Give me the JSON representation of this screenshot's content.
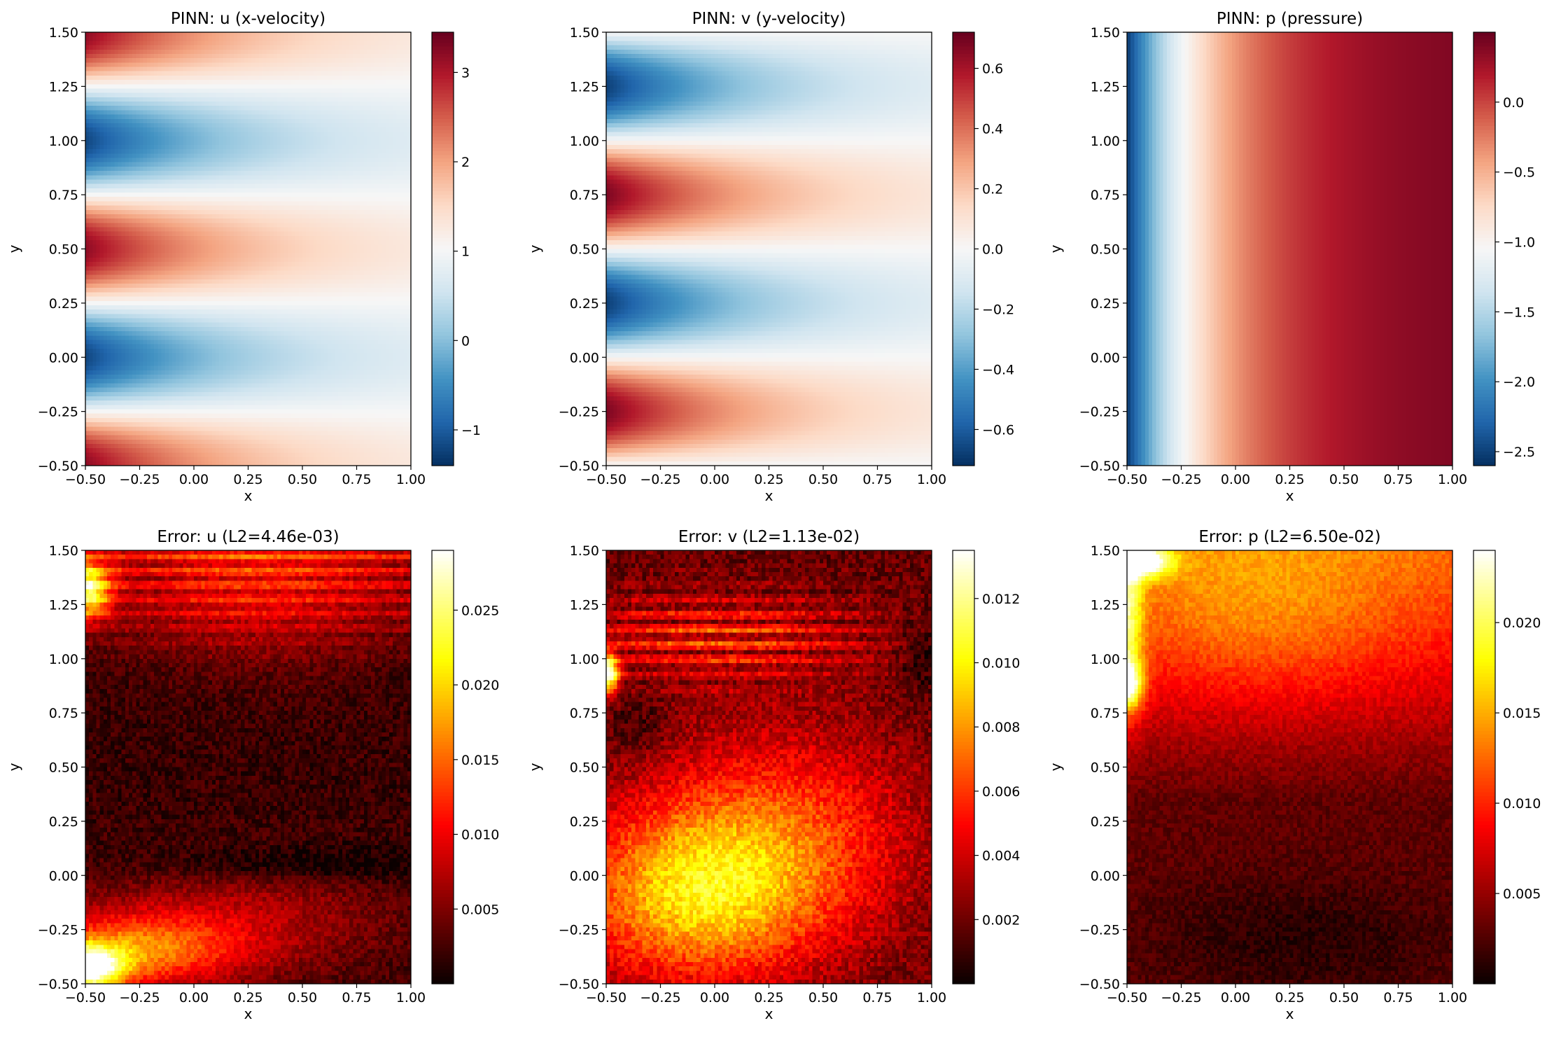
{
  "chart_data": [
    {
      "type": "heatmap",
      "field": "u",
      "title": "PINN: u (x-velocity)",
      "xlabel": "x",
      "ylabel": "y",
      "xlim": [
        -0.5,
        1.0
      ],
      "ylim": [
        -0.5,
        1.5
      ],
      "xticks": [
        "−0.50",
        "−0.25",
        "0.00",
        "0.25",
        "0.50",
        "0.75",
        "1.00"
      ],
      "yticks": [
        "−0.50",
        "−0.25",
        "0.00",
        "0.25",
        "0.50",
        "0.75",
        "1.00",
        "1.25",
        "1.50"
      ],
      "colormap": "RdBu_r",
      "color_range": [
        -1.4,
        3.45
      ],
      "colorbar_ticks": [
        {
          "value": -1,
          "label": "−1"
        },
        {
          "value": 0,
          "label": "0"
        },
        {
          "value": 1,
          "label": "1"
        },
        {
          "value": 2,
          "label": "2"
        },
        {
          "value": 3,
          "label": "3"
        }
      ]
    },
    {
      "type": "heatmap",
      "field": "v",
      "title": "PINN: v (y-velocity)",
      "xlabel": "x",
      "ylabel": "y",
      "xlim": [
        -0.5,
        1.0
      ],
      "ylim": [
        -0.5,
        1.5
      ],
      "xticks": [
        "−0.50",
        "−0.25",
        "0.00",
        "0.25",
        "0.50",
        "0.75",
        "1.00"
      ],
      "yticks": [
        "−0.50",
        "−0.25",
        "0.00",
        "0.25",
        "0.50",
        "0.75",
        "1.00",
        "1.25",
        "1.50"
      ],
      "colormap": "RdBu_r",
      "color_range": [
        -0.72,
        0.72
      ],
      "colorbar_ticks": [
        {
          "value": -0.6,
          "label": "−0.6"
        },
        {
          "value": -0.4,
          "label": "−0.4"
        },
        {
          "value": -0.2,
          "label": "−0.2"
        },
        {
          "value": 0.0,
          "label": "0.0"
        },
        {
          "value": 0.2,
          "label": "0.2"
        },
        {
          "value": 0.4,
          "label": "0.4"
        },
        {
          "value": 0.6,
          "label": "0.6"
        }
      ]
    },
    {
      "type": "heatmap",
      "field": "p",
      "title": "PINN: p (pressure)",
      "xlabel": "x",
      "ylabel": "y",
      "xlim": [
        -0.5,
        1.0
      ],
      "ylim": [
        -0.5,
        1.5
      ],
      "xticks": [
        "−0.50",
        "−0.25",
        "0.00",
        "0.25",
        "0.50",
        "0.75",
        "1.00"
      ],
      "yticks": [
        "−0.50",
        "−0.25",
        "0.00",
        "0.25",
        "0.50",
        "0.75",
        "1.00",
        "1.25",
        "1.50"
      ],
      "colormap": "RdBu_r",
      "color_range": [
        -2.6,
        0.5
      ],
      "colorbar_ticks": [
        {
          "value": -2.5,
          "label": "−2.5"
        },
        {
          "value": -2.0,
          "label": "−2.0"
        },
        {
          "value": -1.5,
          "label": "−1.5"
        },
        {
          "value": -1.0,
          "label": "−1.0"
        },
        {
          "value": -0.5,
          "label": "−0.5"
        },
        {
          "value": 0.0,
          "label": "0.0"
        }
      ]
    },
    {
      "type": "heatmap",
      "field": "err_u",
      "title": "Error: u (L2=4.46e-03)",
      "xlabel": "x",
      "ylabel": "y",
      "xlim": [
        -0.5,
        1.0
      ],
      "ylim": [
        -0.5,
        1.5
      ],
      "xticks": [
        "−0.50",
        "−0.25",
        "0.00",
        "0.25",
        "0.50",
        "0.75",
        "1.00"
      ],
      "yticks": [
        "−0.50",
        "−0.25",
        "0.00",
        "0.25",
        "0.50",
        "0.75",
        "1.00",
        "1.25",
        "1.50"
      ],
      "colormap": "hot",
      "color_range": [
        0.0,
        0.029
      ],
      "colorbar_ticks": [
        {
          "value": 0.005,
          "label": "0.005"
        },
        {
          "value": 0.01,
          "label": "0.010"
        },
        {
          "value": 0.015,
          "label": "0.015"
        },
        {
          "value": 0.02,
          "label": "0.020"
        },
        {
          "value": 0.025,
          "label": "0.025"
        }
      ]
    },
    {
      "type": "heatmap",
      "field": "err_v",
      "title": "Error: v (L2=1.13e-02)",
      "xlabel": "x",
      "ylabel": "y",
      "xlim": [
        -0.5,
        1.0
      ],
      "ylim": [
        -0.5,
        1.5
      ],
      "xticks": [
        "−0.50",
        "−0.25",
        "0.00",
        "0.25",
        "0.50",
        "0.75",
        "1.00"
      ],
      "yticks": [
        "−0.50",
        "−0.25",
        "0.00",
        "0.25",
        "0.50",
        "0.75",
        "1.00",
        "1.25",
        "1.50"
      ],
      "colormap": "hot",
      "color_range": [
        0.0,
        0.0135
      ],
      "colorbar_ticks": [
        {
          "value": 0.002,
          "label": "0.002"
        },
        {
          "value": 0.004,
          "label": "0.004"
        },
        {
          "value": 0.006,
          "label": "0.006"
        },
        {
          "value": 0.008,
          "label": "0.008"
        },
        {
          "value": 0.01,
          "label": "0.010"
        },
        {
          "value": 0.012,
          "label": "0.012"
        }
      ]
    },
    {
      "type": "heatmap",
      "field": "err_p",
      "title": "Error: p (L2=6.50e-02)",
      "xlabel": "x",
      "ylabel": "y",
      "xlim": [
        -0.5,
        1.0
      ],
      "ylim": [
        -0.5,
        1.5
      ],
      "xticks": [
        "−0.50",
        "−0.25",
        "0.00",
        "0.25",
        "0.50",
        "0.75",
        "1.00"
      ],
      "yticks": [
        "−0.50",
        "−0.25",
        "0.00",
        "0.25",
        "0.50",
        "0.75",
        "1.00",
        "1.25",
        "1.50"
      ],
      "colormap": "hot",
      "color_range": [
        0.0,
        0.024
      ],
      "colorbar_ticks": [
        {
          "value": 0.005,
          "label": "0.005"
        },
        {
          "value": 0.01,
          "label": "0.010"
        },
        {
          "value": 0.015,
          "label": "0.015"
        },
        {
          "value": 0.02,
          "label": "0.020"
        }
      ]
    }
  ]
}
